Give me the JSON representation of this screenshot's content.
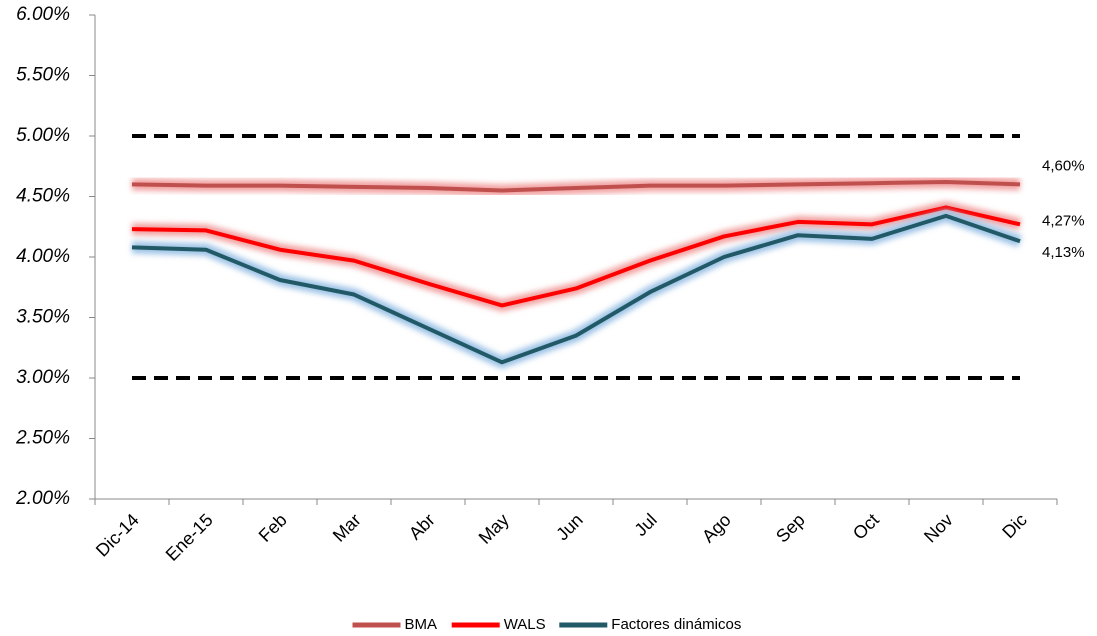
{
  "chart_data": {
    "type": "line",
    "categories": [
      "Dic-14",
      "Ene-15",
      "Feb",
      "Mar",
      "Abr",
      "May",
      "Jun",
      "Jul",
      "Ago",
      "Sep",
      "Oct",
      "Nov",
      "Dic"
    ],
    "series": [
      {
        "name": "BMA",
        "color": "#c0504d",
        "glow": "#f2a0a0",
        "values": [
          4.6,
          4.59,
          4.59,
          4.58,
          4.57,
          4.55,
          4.57,
          4.59,
          4.59,
          4.6,
          4.61,
          4.62,
          4.6
        ],
        "value_labels": [
          null,
          null,
          null,
          null,
          null,
          null,
          null,
          null,
          null,
          null,
          null,
          null,
          "4,60%"
        ]
      },
      {
        "name": "WALS",
        "color": "#ff0000",
        "glow": "#f2a0a0",
        "values": [
          4.23,
          4.22,
          4.06,
          3.97,
          3.78,
          3.6,
          3.74,
          3.97,
          4.17,
          4.29,
          4.27,
          4.41,
          4.27
        ],
        "value_labels": [
          null,
          null,
          null,
          null,
          null,
          null,
          null,
          null,
          null,
          null,
          null,
          null,
          "4,27%"
        ]
      },
      {
        "name": "Factores dinámicos",
        "color": "#215967",
        "glow": "#9dc3e6",
        "values": [
          4.08,
          4.06,
          3.81,
          3.69,
          3.41,
          3.13,
          3.35,
          3.71,
          4.0,
          4.18,
          4.15,
          4.34,
          4.13
        ],
        "value_labels": [
          null,
          null,
          null,
          null,
          null,
          null,
          null,
          null,
          null,
          null,
          null,
          null,
          "4,13%"
        ]
      }
    ],
    "reference_lines": [
      5,
      3
    ],
    "ylim": [
      2,
      6
    ],
    "yticks": [
      {
        "value": 2,
        "label": "2.00%"
      },
      {
        "value": 2.5,
        "label": "2.50%"
      },
      {
        "value": 3,
        "label": "3.00%"
      },
      {
        "value": 3.5,
        "label": "3.50%"
      },
      {
        "value": 4,
        "label": "4.00%"
      },
      {
        "value": 4.5,
        "label": "4.50%"
      },
      {
        "value": 5,
        "label": "5.00%"
      },
      {
        "value": 5.5,
        "label": "5.50%"
      },
      {
        "value": 6,
        "label": "6.00%"
      }
    ],
    "grid": false,
    "legend": "bottom"
  }
}
